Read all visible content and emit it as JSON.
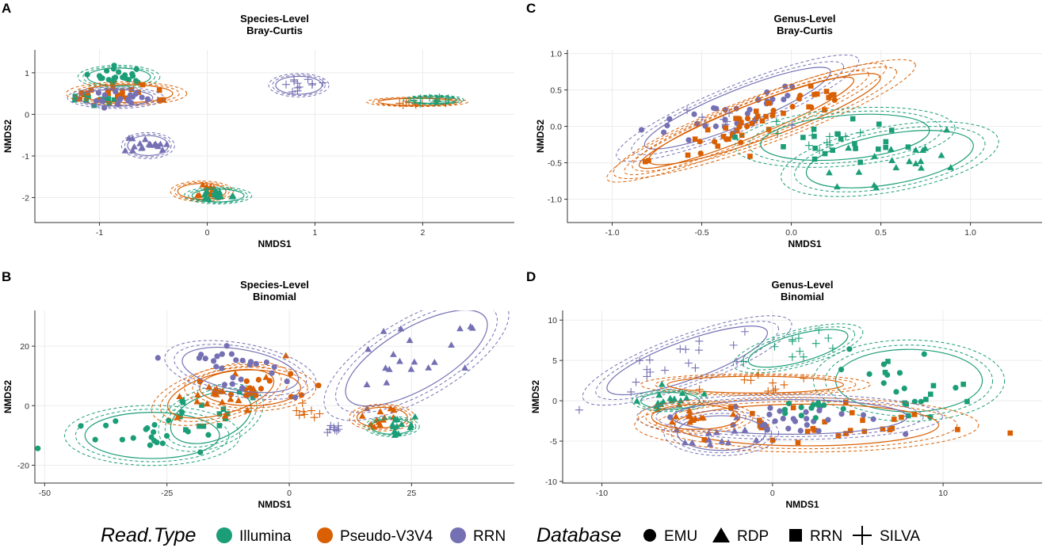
{
  "colors": {
    "Illumina": "#1b9e77",
    "Pseudo-V3V4": "#d95f02",
    "RRN": "#7570b3",
    "grid": "#ececec",
    "axis": "#333333"
  },
  "legend": {
    "read_type_title": "Read.Type",
    "read_types": [
      "Illumina",
      "Pseudo-V3V4",
      "RRN"
    ],
    "database_title": "Database",
    "databases": [
      {
        "label": "EMU",
        "shape": "circle"
      },
      {
        "label": "RDP",
        "shape": "triangle"
      },
      {
        "label": "RRN",
        "shape": "square"
      },
      {
        "label": "SILVA",
        "shape": "cross"
      }
    ]
  },
  "chart_data": [
    {
      "panel": "A",
      "type": "scatter",
      "title": "Species-Level\nBray-Curtis",
      "xlabel": "NMDS1",
      "ylabel": "NMDS2",
      "xlim": [
        -1.6,
        2.85
      ],
      "ylim": [
        -2.6,
        1.55
      ],
      "xticks": [
        -1,
        0,
        1,
        2
      ],
      "yticks": [
        -2,
        -1,
        0,
        1
      ],
      "clusters": [
        {
          "read": "Illumina",
          "db": "EMU",
          "cx": -0.82,
          "cy": 0.9,
          "rx": 0.34,
          "ry": 0.25,
          "ang": 0,
          "n": 22,
          "ellipse": true
        },
        {
          "read": "Illumina",
          "db": "RRN",
          "cx": -1.0,
          "cy": 0.4,
          "rx": 0.33,
          "ry": 0.22,
          "ang": 0,
          "n": 14,
          "ellipse": false
        },
        {
          "read": "Pseudo-V3V4",
          "db": "RRN",
          "cx": -0.75,
          "cy": 0.5,
          "rx": 0.5,
          "ry": 0.25,
          "ang": 0,
          "n": 20,
          "ellipse": true
        },
        {
          "read": "RRN",
          "db": "EMU",
          "cx": -0.85,
          "cy": 0.4,
          "rx": 0.4,
          "ry": 0.23,
          "ang": 0,
          "n": 18,
          "ellipse": true
        },
        {
          "read": "RRN",
          "db": "SILVA",
          "cx": 0.85,
          "cy": 0.7,
          "rx": 0.25,
          "ry": 0.25,
          "ang": 0,
          "n": 12,
          "ellipse": true
        },
        {
          "read": "Pseudo-V3V4",
          "db": "SILVA",
          "cx": 1.95,
          "cy": 0.3,
          "rx": 0.42,
          "ry": 0.1,
          "ang": 0,
          "n": 10,
          "ellipse": true
        },
        {
          "read": "Illumina",
          "db": "SILVA",
          "cx": 2.1,
          "cy": 0.35,
          "rx": 0.25,
          "ry": 0.1,
          "ang": 0,
          "n": 10,
          "ellipse": true
        },
        {
          "read": "RRN",
          "db": "RDP",
          "cx": -0.55,
          "cy": -0.75,
          "rx": 0.22,
          "ry": 0.28,
          "ang": 0,
          "n": 18,
          "ellipse": true
        },
        {
          "read": "Pseudo-V3V4",
          "db": "RDP",
          "cx": -0.05,
          "cy": -1.85,
          "rx": 0.26,
          "ry": 0.22,
          "ang": 0,
          "n": 16,
          "ellipse": true
        },
        {
          "read": "Illumina",
          "db": "RDP",
          "cx": 0.1,
          "cy": -1.95,
          "rx": 0.28,
          "ry": 0.18,
          "ang": 0,
          "n": 16,
          "ellipse": true
        }
      ]
    },
    {
      "panel": "B",
      "type": "scatter",
      "title": "Species-Level\nBinomial",
      "xlabel": "NMDS1",
      "ylabel": "NMDS2",
      "xlim": [
        -52,
        46
      ],
      "ylim": [
        -26,
        32
      ],
      "xticks": [
        -50,
        -25,
        0,
        25
      ],
      "yticks": [
        -20,
        0,
        20
      ],
      "clusters": [
        {
          "read": "Illumina",
          "db": "EMU",
          "cx": -28,
          "cy": -10,
          "rx": 16,
          "ry": 9,
          "ang": 0,
          "n": 22,
          "ellipse": true
        },
        {
          "read": "Illumina",
          "db": "RRN",
          "cx": -16,
          "cy": -4,
          "rx": 10,
          "ry": 9,
          "ang": 20,
          "n": 14,
          "ellipse": true
        },
        {
          "read": "Pseudo-V3V4",
          "db": "RDP",
          "cx": -14,
          "cy": 4,
          "rx": 13,
          "ry": 8,
          "ang": 15,
          "n": 22,
          "ellipse": true
        },
        {
          "read": "Pseudo-V3V4",
          "db": "EMU",
          "cx": -8,
          "cy": 6,
          "rx": 12,
          "ry": 7,
          "ang": 0,
          "n": 16,
          "ellipse": true
        },
        {
          "read": "RRN",
          "db": "EMU",
          "cx": -10,
          "cy": 12,
          "rx": 14,
          "ry": 8,
          "ang": -10,
          "n": 26,
          "ellipse": true
        },
        {
          "read": "Pseudo-V3V4",
          "db": "SILVA",
          "cx": 4,
          "cy": -2,
          "rx": 3,
          "ry": 2,
          "ang": 0,
          "n": 8,
          "ellipse": false
        },
        {
          "read": "RRN",
          "db": "SILVA",
          "cx": 9,
          "cy": -8,
          "rx": 3,
          "ry": 3,
          "ang": 30,
          "n": 8,
          "ellipse": false
        },
        {
          "read": "RRN",
          "db": "RDP",
          "cx": 26,
          "cy": 16,
          "rx": 19,
          "ry": 12,
          "ang": 30,
          "n": 20,
          "ellipse": true
        },
        {
          "read": "Pseudo-V3V4",
          "db": "RDP",
          "cx": 19,
          "cy": -4,
          "rx": 6,
          "ry": 4,
          "ang": 0,
          "n": 12,
          "ellipse": true
        },
        {
          "read": "Illumina",
          "db": "RDP",
          "cx": 21,
          "cy": -7,
          "rx": 5,
          "ry": 3,
          "ang": 0,
          "n": 12,
          "ellipse": true
        }
      ]
    },
    {
      "panel": "C",
      "type": "scatter",
      "title": "Genus-Level\nBray-Curtis",
      "xlabel": "NMDS1",
      "ylabel": "NMDS2",
      "xlim": [
        -1.25,
        1.4
      ],
      "ylim": [
        -1.32,
        1.05
      ],
      "xticks": [
        -1.0,
        -0.5,
        0.0,
        0.5,
        1.0
      ],
      "yticks": [
        -1.0,
        -0.5,
        0.0,
        0.5,
        1.0
      ],
      "clusters": [
        {
          "read": "RRN",
          "db": "EMU",
          "cx": -0.3,
          "cy": 0.25,
          "rx": 0.65,
          "ry": 0.28,
          "ang": 22,
          "n": 30,
          "ellipse": true
        },
        {
          "read": "Pseudo-V3V4",
          "db": "RRN",
          "cx": -0.15,
          "cy": 0.1,
          "rx": 0.8,
          "ry": 0.3,
          "ang": 20,
          "n": 34,
          "ellipse": true
        },
        {
          "read": "Pseudo-V3V4",
          "db": "EMU",
          "cx": -0.25,
          "cy": 0.05,
          "rx": 0.75,
          "ry": 0.25,
          "ang": 22,
          "n": 16,
          "ellipse": true
        },
        {
          "read": "Illumina",
          "db": "RDP",
          "cx": 0.55,
          "cy": -0.45,
          "rx": 0.55,
          "ry": 0.4,
          "ang": 10,
          "n": 20,
          "ellipse": true
        },
        {
          "read": "Illumina",
          "db": "RRN",
          "cx": 0.3,
          "cy": -0.15,
          "rx": 0.55,
          "ry": 0.35,
          "ang": 5,
          "n": 22,
          "ellipse": true
        },
        {
          "read": "Illumina",
          "db": "SILVA",
          "cx": 0.25,
          "cy": -0.2,
          "rx": 0.35,
          "ry": 0.25,
          "ang": 0,
          "n": 10,
          "ellipse": false
        },
        {
          "read": "RRN",
          "db": "SILVA",
          "cx": -0.35,
          "cy": 0.1,
          "rx": 0.35,
          "ry": 0.3,
          "ang": 0,
          "n": 10,
          "ellipse": false
        }
      ]
    },
    {
      "panel": "D",
      "type": "scatter",
      "title": "Genus-Level\nBinomial",
      "xlabel": "NMDS1",
      "ylabel": "NMDS2",
      "xlim": [
        -12.3,
        15.8
      ],
      "ylim": [
        -10.2,
        11.2
      ],
      "xticks": [
        -10,
        0,
        10
      ],
      "yticks": [
        -10,
        -5,
        0,
        5,
        10
      ],
      "clusters": [
        {
          "read": "RRN",
          "db": "SILVA",
          "cx": -5,
          "cy": 5,
          "rx": 5.8,
          "ry": 2.8,
          "ang": 20,
          "n": 18,
          "ellipse": true
        },
        {
          "read": "Illumina",
          "db": "SILVA",
          "cx": 1.5,
          "cy": 6.5,
          "rx": 3.5,
          "ry": 2,
          "ang": 15,
          "n": 12,
          "ellipse": true
        },
        {
          "read": "Illumina",
          "db": "EMU",
          "cx": 8,
          "cy": 2.5,
          "rx": 5,
          "ry": 4.5,
          "ang": 0,
          "n": 14,
          "ellipse": true
        },
        {
          "read": "Illumina",
          "db": "RRN",
          "cx": 9,
          "cy": 1,
          "rx": 4,
          "ry": 4.5,
          "ang": 0,
          "n": 10,
          "ellipse": false
        },
        {
          "read": "Pseudo-V3V4",
          "db": "SILVA",
          "cx": -1,
          "cy": 2,
          "rx": 6,
          "ry": 1.2,
          "ang": 0,
          "n": 10,
          "ellipse": true
        },
        {
          "read": "Illumina",
          "db": "RDP",
          "cx": -6,
          "cy": 0,
          "rx": 2,
          "ry": 1.2,
          "ang": 0,
          "n": 16,
          "ellipse": true
        },
        {
          "read": "Pseudo-V3V4",
          "db": "RRN",
          "cx": 2,
          "cy": -3,
          "rx": 9,
          "ry": 3,
          "ang": 0,
          "n": 30,
          "ellipse": true
        },
        {
          "read": "RRN",
          "db": "EMU",
          "cx": 1,
          "cy": -2,
          "rx": 8,
          "ry": 2.5,
          "ang": 0,
          "n": 26,
          "ellipse": true
        },
        {
          "read": "RRN",
          "db": "RDP",
          "cx": -3,
          "cy": -4,
          "rx": 3,
          "ry": 2.5,
          "ang": 0,
          "n": 14,
          "ellipse": true
        },
        {
          "read": "Pseudo-V3V4",
          "db": "RDP",
          "cx": -4.5,
          "cy": -2,
          "rx": 3,
          "ry": 1.8,
          "ang": 0,
          "n": 12,
          "ellipse": true
        },
        {
          "read": "Illumina",
          "db": "EMU",
          "cx": 2,
          "cy": -1,
          "rx": 3,
          "ry": 2,
          "ang": 0,
          "n": 12,
          "ellipse": false
        }
      ]
    }
  ]
}
